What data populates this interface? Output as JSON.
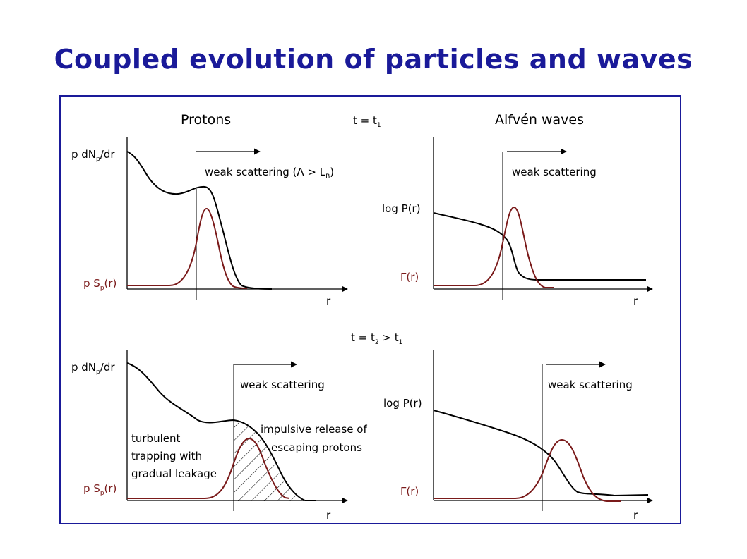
{
  "title": "Coupled evolution of particles and waves",
  "headings": {
    "protons": "Protons",
    "waves": "Alfvén waves"
  },
  "times": {
    "t1": {
      "pre": "t = t",
      "sub": "1"
    },
    "t2": {
      "a": "t = t",
      "sub_a": "2",
      "b": " > t",
      "sub_b": "1"
    }
  },
  "protons_top": {
    "ylabel_a": "p dN",
    "ylabel_sub": "p",
    "ylabel_b": "/dr",
    "source_a": "p S",
    "source_sub": "p",
    "source_b": "(r)",
    "arrow_a": "weak scattering (Λ > L",
    "arrow_sub": "B",
    "arrow_b": ")",
    "xlabel": "r"
  },
  "waves_top": {
    "ylabel": "log P(r)",
    "growth": "Γ(r)",
    "arrow": "weak scattering",
    "xlabel": "r"
  },
  "protons_bottom": {
    "ylabel_a": "p dN",
    "ylabel_sub": "p",
    "ylabel_b": "/dr",
    "source_a": "p S",
    "source_sub": "p",
    "source_b": "(r)",
    "arrow": "weak scattering",
    "note_left": [
      "turbulent",
      "trapping with",
      "gradual leakage"
    ],
    "note_right": [
      "impulsive release of",
      "escaping protons"
    ],
    "xlabel": "r"
  },
  "waves_bottom": {
    "ylabel": "log P(r)",
    "growth": "Γ(r)",
    "arrow": "weak scattering",
    "xlabel": "r"
  },
  "colors": {
    "title": "#1a1a99",
    "frame": "#1a1a99",
    "source": "#7a1a1a",
    "curve": "#000000"
  }
}
